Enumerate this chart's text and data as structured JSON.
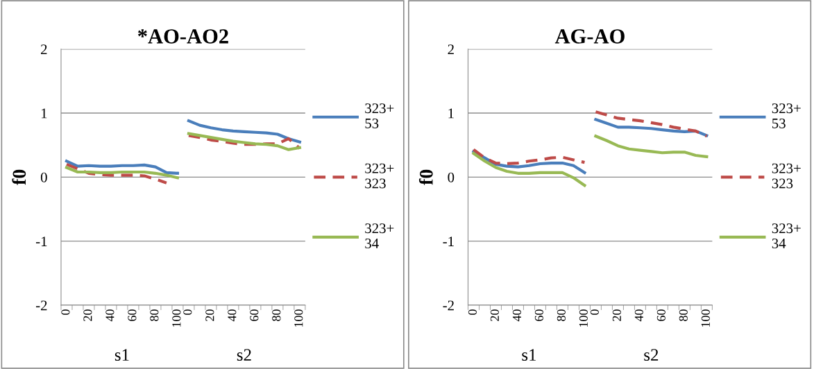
{
  "chart_data": [
    {
      "type": "line",
      "title": "*AO-AO2",
      "ylabel": "f0",
      "categories": [
        "0",
        null,
        "20",
        null,
        "40",
        null,
        "60",
        null,
        "80",
        null,
        "100",
        "0",
        null,
        "20",
        null,
        "40",
        null,
        "60",
        null,
        "80",
        null,
        "100"
      ],
      "annotations": [
        "s1",
        "s2"
      ],
      "ylim": [
        -2,
        2
      ],
      "yticks": [
        -2,
        -1,
        0,
        1,
        2
      ],
      "grid": "y",
      "legend": "right",
      "marker": "none",
      "series": [
        {
          "name": "323+\n53",
          "color": "#4a7ebb",
          "line_style": "solid",
          "values": [
            0.25,
            0.17,
            0.18,
            0.17,
            0.17,
            0.18,
            0.18,
            0.19,
            0.16,
            0.07,
            0.06,
            0.88,
            0.81,
            0.77,
            0.74,
            0.72,
            0.71,
            0.7,
            0.69,
            0.67,
            0.6,
            0.55
          ]
        },
        {
          "name": "323+\n323",
          "color": "#be4b48",
          "line_style": "dashed",
          "values": [
            0.2,
            0.13,
            0.06,
            0.04,
            0.03,
            0.03,
            0.03,
            0.02,
            -0.03,
            -0.09,
            null,
            0.65,
            0.62,
            0.58,
            0.56,
            0.53,
            0.51,
            0.51,
            0.52,
            0.52,
            0.6,
            0.45
          ]
        },
        {
          "name": "323+\n34",
          "color": "#98b954",
          "line_style": "solid",
          "values": [
            0.15,
            0.08,
            0.08,
            0.07,
            0.07,
            0.08,
            0.08,
            0.08,
            0.06,
            0.03,
            -0.01,
            0.68,
            0.65,
            0.62,
            0.59,
            0.56,
            0.54,
            0.52,
            0.51,
            0.49,
            0.43,
            0.46
          ]
        }
      ]
    },
    {
      "type": "line",
      "title": "AG-AO",
      "ylabel": "f0",
      "categories": [
        "0",
        null,
        "20",
        null,
        "40",
        null,
        "60",
        null,
        "80",
        null,
        "100",
        "0",
        null,
        "20",
        null,
        "40",
        null,
        "60",
        null,
        "80",
        null,
        "100"
      ],
      "annotations": [
        "s1",
        "s2"
      ],
      "ylim": [
        -2,
        2
      ],
      "yticks": [
        -2,
        -1,
        0,
        1,
        2
      ],
      "grid": "y",
      "legend": "right",
      "marker": "none",
      "series": [
        {
          "name": "323+\n53",
          "color": "#4a7ebb",
          "line_style": "solid",
          "values": [
            0.4,
            0.3,
            0.2,
            0.17,
            0.16,
            0.18,
            0.21,
            0.22,
            0.22,
            0.18,
            0.07,
            0.9,
            0.84,
            0.78,
            0.78,
            0.77,
            0.76,
            0.74,
            0.72,
            0.71,
            0.72,
            0.65
          ]
        },
        {
          "name": "323+\n323",
          "color": "#be4b48",
          "line_style": "dashed",
          "values": [
            0.43,
            0.3,
            0.22,
            0.21,
            0.22,
            0.25,
            0.27,
            0.3,
            0.31,
            0.27,
            0.23,
            1.02,
            0.97,
            0.92,
            0.9,
            0.88,
            0.85,
            0.82,
            0.78,
            0.75,
            0.72,
            0.64
          ]
        },
        {
          "name": "323+\n34",
          "color": "#98b954",
          "line_style": "solid",
          "values": [
            0.37,
            0.25,
            0.15,
            0.09,
            0.06,
            0.06,
            0.07,
            0.07,
            0.07,
            -0.01,
            -0.13,
            0.64,
            0.57,
            0.49,
            0.44,
            0.42,
            0.4,
            0.38,
            0.39,
            0.39,
            0.34,
            0.32
          ]
        }
      ]
    }
  ]
}
